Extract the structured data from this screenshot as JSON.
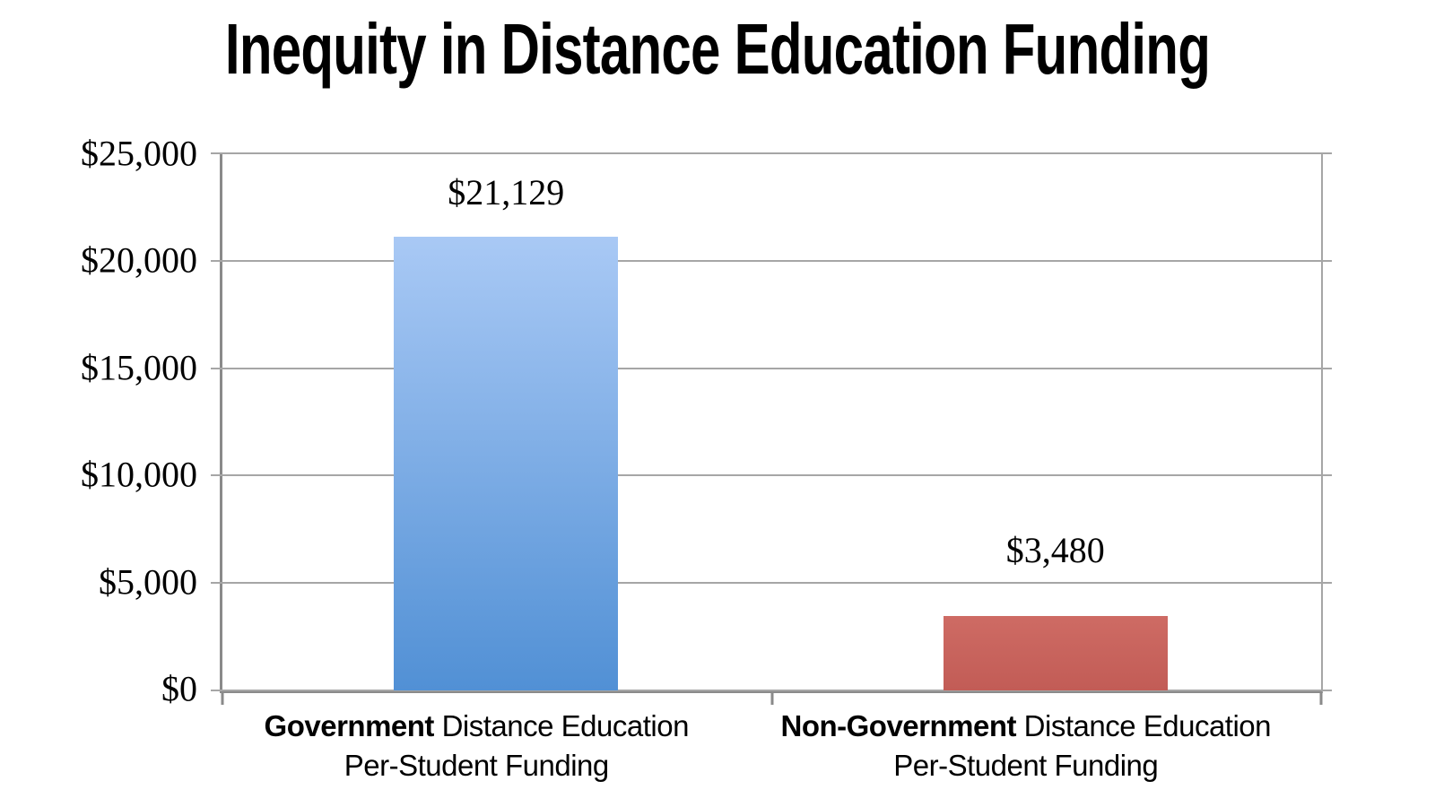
{
  "title": "Inequity in Distance Education Funding",
  "chart_data": {
    "type": "bar",
    "title": "Inequity in Distance Education Funding",
    "categories": [
      "Government Distance Education Per-Student Funding",
      "Non-Government Distance Education Per-Student Funding"
    ],
    "category_lines": [
      {
        "bold": "Government",
        "rest": " Distance Education",
        "line2": "Per-Student Funding"
      },
      {
        "bold": "Non-Government",
        "rest": " Distance Education",
        "line2": "Per-Student Funding"
      }
    ],
    "values": [
      21129,
      3480
    ],
    "value_labels": [
      "$21,129",
      "$3,480"
    ],
    "series_colors": [
      {
        "top": "#a9c9f5",
        "bottom": "#5190d5"
      },
      {
        "top": "#ce6b64",
        "bottom": "#c25c56"
      }
    ],
    "xlabel": "",
    "ylabel": "",
    "ylim": [
      0,
      25000
    ],
    "yticks": [
      {
        "value": 25000,
        "label": "$25,000"
      },
      {
        "value": 20000,
        "label": "$20,000"
      },
      {
        "value": 15000,
        "label": "$15,000"
      },
      {
        "value": 10000,
        "label": "$10,000"
      },
      {
        "value": 5000,
        "label": "$5,000"
      },
      {
        "value": 0,
        "label": "$0"
      }
    ],
    "grid": true,
    "legend": false,
    "gridline_color": "#a6a6a6",
    "axis_color": "#8a8a8a",
    "background": "#ffffff",
    "text_color": "#000000"
  }
}
